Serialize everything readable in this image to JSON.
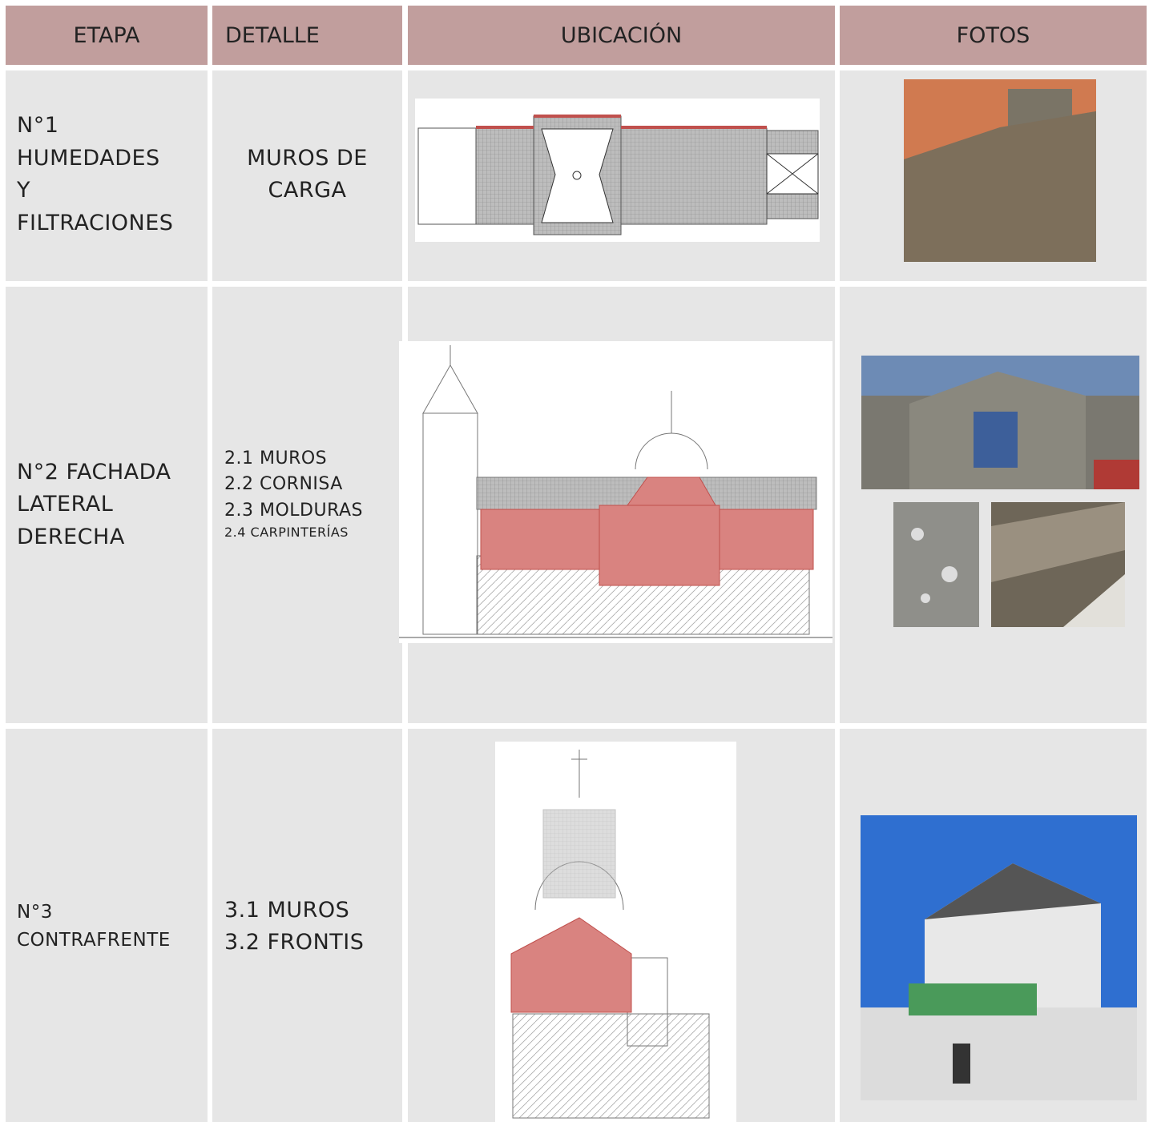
{
  "table": {
    "header": [
      "ETAPA",
      "DETALLE",
      "UBICACIÓN",
      "FOTOS"
    ],
    "rows": [
      {
        "etapa": [
          "N°1",
          "HUMEDADES",
          "Y",
          "FILTRACIONES"
        ],
        "detalle": [
          "MUROS DE",
          "CARGA"
        ]
      },
      {
        "etapa": [
          "N°2 FACHADA",
          "LATERAL",
          "DERECHA"
        ],
        "detalle": [
          "2.1 MUROS",
          "2.2 CORNISA",
          "2.3 MOLDURAS",
          "2.4 CARPINTERÍAS"
        ]
      },
      {
        "etapa": [
          "N°3",
          "CONTRAFRENTE"
        ],
        "detalle": [
          "3.1 MUROS",
          "3.2 FRONTIS"
        ]
      }
    ]
  }
}
